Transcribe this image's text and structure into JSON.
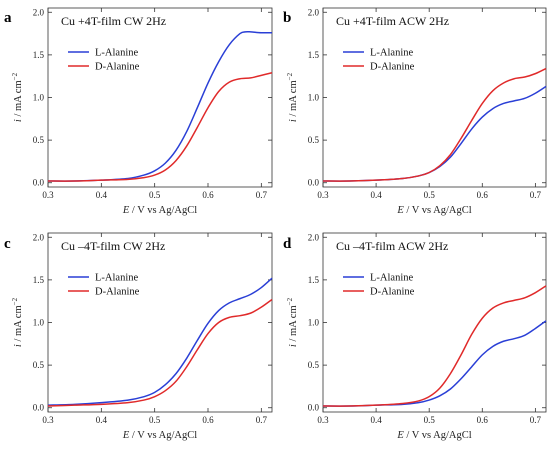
{
  "chart_data": [
    {
      "type": "line",
      "panel_letter": "a",
      "title": "Cu +4T-film  CW 2Hz",
      "xlabel": {
        "var": "E",
        "unit": " / V vs Ag/AgCl"
      },
      "ylabel": {
        "var": "i",
        "unit": " / mA cm",
        "sup": "−2"
      },
      "xlim": [
        0.3,
        0.72
      ],
      "ylim": [
        -0.05,
        2.05
      ],
      "xticks": [
        0.3,
        0.4,
        0.5,
        0.6,
        0.7
      ],
      "xtick_labels": [
        "0.3",
        "0.4",
        "0.5",
        "0.6",
        "0.7"
      ],
      "yticks": [
        0.0,
        0.5,
        1.0,
        1.5,
        2.0
      ],
      "ytick_labels": [
        "0.0",
        "0.5",
        "1.0",
        "1.5",
        "2.0"
      ],
      "legend_position": "upper-left",
      "series": [
        {
          "name": "L-Alanine",
          "color": "#2a3fd6",
          "x": [
            0.3,
            0.35,
            0.4,
            0.45,
            0.48,
            0.5,
            0.52,
            0.54,
            0.56,
            0.58,
            0.6,
            0.62,
            0.64,
            0.66,
            0.67,
            0.68,
            0.7,
            0.72
          ],
          "y": [
            0.02,
            0.02,
            0.03,
            0.05,
            0.09,
            0.14,
            0.23,
            0.38,
            0.6,
            0.88,
            1.17,
            1.42,
            1.62,
            1.75,
            1.77,
            1.77,
            1.76,
            1.76
          ]
        },
        {
          "name": "D-Alanine",
          "color": "#e02a2a",
          "x": [
            0.3,
            0.35,
            0.4,
            0.45,
            0.48,
            0.5,
            0.52,
            0.54,
            0.56,
            0.58,
            0.6,
            0.62,
            0.64,
            0.66,
            0.68,
            0.7,
            0.72
          ],
          "y": [
            0.02,
            0.02,
            0.03,
            0.04,
            0.06,
            0.09,
            0.15,
            0.26,
            0.43,
            0.65,
            0.88,
            1.07,
            1.18,
            1.22,
            1.23,
            1.26,
            1.29
          ]
        }
      ]
    },
    {
      "type": "line",
      "panel_letter": "b",
      "title": "Cu +4T-film ACW 2Hz",
      "xlabel": {
        "var": "E",
        "unit": " / V vs Ag/AgCl"
      },
      "ylabel": {
        "var": "i",
        "unit": " / mA cm",
        "sup": "−2"
      },
      "xlim": [
        0.3,
        0.72
      ],
      "ylim": [
        -0.05,
        2.05
      ],
      "xticks": [
        0.3,
        0.4,
        0.5,
        0.6,
        0.7
      ],
      "xtick_labels": [
        "0.3",
        "0.4",
        "0.5",
        "0.6",
        "0.7"
      ],
      "yticks": [
        0.0,
        0.5,
        1.0,
        1.5,
        2.0
      ],
      "ytick_labels": [
        "0.0",
        "0.5",
        "1.0",
        "1.5",
        "2.0"
      ],
      "legend_position": "upper-left",
      "series": [
        {
          "name": "L-Alanine",
          "color": "#2a3fd6",
          "x": [
            0.3,
            0.35,
            0.4,
            0.45,
            0.48,
            0.5,
            0.52,
            0.54,
            0.56,
            0.58,
            0.6,
            0.62,
            0.64,
            0.66,
            0.68,
            0.7,
            0.72
          ],
          "y": [
            0.02,
            0.02,
            0.03,
            0.05,
            0.08,
            0.12,
            0.19,
            0.3,
            0.46,
            0.63,
            0.77,
            0.87,
            0.93,
            0.96,
            0.99,
            1.05,
            1.13
          ]
        },
        {
          "name": "D-Alanine",
          "color": "#e02a2a",
          "x": [
            0.3,
            0.35,
            0.4,
            0.45,
            0.48,
            0.5,
            0.52,
            0.54,
            0.56,
            0.58,
            0.6,
            0.62,
            0.64,
            0.66,
            0.68,
            0.7,
            0.72
          ],
          "y": [
            0.02,
            0.02,
            0.03,
            0.05,
            0.08,
            0.12,
            0.2,
            0.33,
            0.52,
            0.73,
            0.93,
            1.08,
            1.17,
            1.22,
            1.24,
            1.28,
            1.34
          ]
        }
      ]
    },
    {
      "type": "line",
      "panel_letter": "c",
      "title": "Cu –4T-film  CW 2Hz",
      "xlabel": {
        "var": "E",
        "unit": " / V vs Ag/AgCl"
      },
      "ylabel": {
        "var": "i",
        "unit": " / mA cm",
        "sup": "−2"
      },
      "xlim": [
        0.3,
        0.72
      ],
      "ylim": [
        -0.05,
        2.05
      ],
      "xticks": [
        0.3,
        0.4,
        0.5,
        0.6,
        0.7
      ],
      "xtick_labels": [
        "0.3",
        "0.4",
        "0.5",
        "0.6",
        "0.7"
      ],
      "yticks": [
        0.0,
        0.5,
        1.0,
        1.5,
        2.0
      ],
      "ytick_labels": [
        "0.0",
        "0.5",
        "1.0",
        "1.5",
        "2.0"
      ],
      "legend_position": "upper-left",
      "series": [
        {
          "name": "L-Alanine",
          "color": "#2a3fd6",
          "x": [
            0.3,
            0.35,
            0.4,
            0.45,
            0.48,
            0.5,
            0.52,
            0.54,
            0.56,
            0.58,
            0.6,
            0.62,
            0.64,
            0.66,
            0.68,
            0.7,
            0.72
          ],
          "y": [
            0.03,
            0.04,
            0.06,
            0.09,
            0.13,
            0.18,
            0.27,
            0.4,
            0.58,
            0.79,
            0.99,
            1.14,
            1.23,
            1.28,
            1.33,
            1.41,
            1.52
          ]
        },
        {
          "name": "D-Alanine",
          "color": "#e02a2a",
          "x": [
            0.3,
            0.35,
            0.4,
            0.45,
            0.48,
            0.5,
            0.52,
            0.54,
            0.56,
            0.58,
            0.6,
            0.62,
            0.64,
            0.66,
            0.68,
            0.7,
            0.72
          ],
          "y": [
            0.02,
            0.03,
            0.04,
            0.06,
            0.09,
            0.13,
            0.2,
            0.31,
            0.48,
            0.68,
            0.87,
            1.0,
            1.06,
            1.08,
            1.11,
            1.18,
            1.27
          ]
        }
      ]
    },
    {
      "type": "line",
      "panel_letter": "d",
      "title": "Cu –4T-film  ACW 2Hz",
      "xlabel": {
        "var": "E",
        "unit": " / V vs Ag/AgCl"
      },
      "ylabel": {
        "var": "i",
        "unit": " / mA cm",
        "sup": "−2"
      },
      "xlim": [
        0.3,
        0.72
      ],
      "ylim": [
        -0.05,
        2.05
      ],
      "xticks": [
        0.3,
        0.4,
        0.5,
        0.6,
        0.7
      ],
      "xtick_labels": [
        "0.3",
        "0.4",
        "0.5",
        "0.6",
        "0.7"
      ],
      "yticks": [
        0.0,
        0.5,
        1.0,
        1.5,
        2.0
      ],
      "ytick_labels": [
        "0.0",
        "0.5",
        "1.0",
        "1.5",
        "2.0"
      ],
      "legend_position": "upper-left",
      "series": [
        {
          "name": "L-Alanine",
          "color": "#2a3fd6",
          "x": [
            0.3,
            0.35,
            0.4,
            0.45,
            0.48,
            0.5,
            0.52,
            0.54,
            0.56,
            0.58,
            0.6,
            0.62,
            0.64,
            0.66,
            0.68,
            0.7,
            0.72
          ],
          "y": [
            0.02,
            0.02,
            0.03,
            0.04,
            0.06,
            0.09,
            0.14,
            0.22,
            0.34,
            0.48,
            0.62,
            0.72,
            0.78,
            0.81,
            0.85,
            0.93,
            1.02
          ]
        },
        {
          "name": "D-Alanine",
          "color": "#e02a2a",
          "x": [
            0.3,
            0.35,
            0.4,
            0.45,
            0.48,
            0.5,
            0.52,
            0.54,
            0.56,
            0.58,
            0.6,
            0.62,
            0.64,
            0.66,
            0.68,
            0.7,
            0.72
          ],
          "y": [
            0.02,
            0.02,
            0.03,
            0.05,
            0.08,
            0.13,
            0.23,
            0.4,
            0.62,
            0.86,
            1.05,
            1.17,
            1.23,
            1.26,
            1.29,
            1.35,
            1.43
          ]
        }
      ]
    }
  ]
}
